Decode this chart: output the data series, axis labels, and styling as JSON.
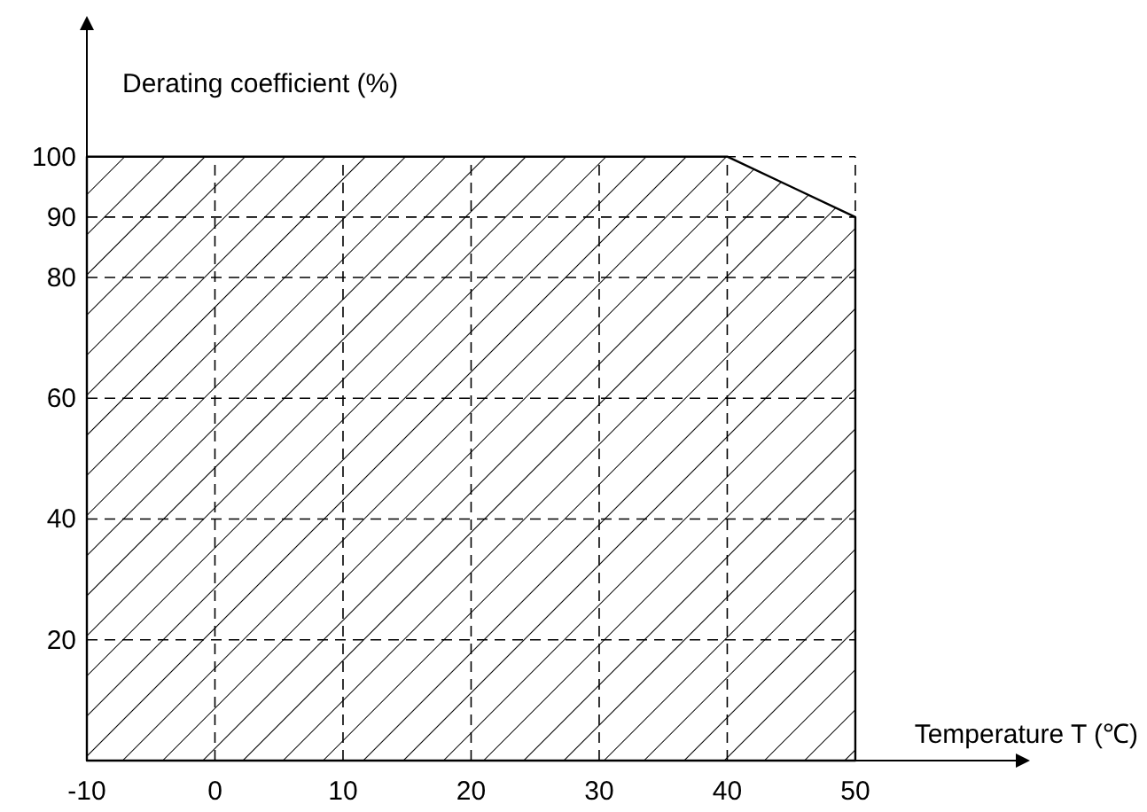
{
  "chart_data": {
    "type": "area",
    "xlabel": "Temperature T (℃)",
    "ylabel": "Derating coefficient (%)",
    "x": [
      -10,
      40,
      45,
      50
    ],
    "series": [
      {
        "color": "#000000",
        "values": [
          100,
          100,
          95,
          90
        ]
      }
    ],
    "xlim": [
      -10,
      63.5
    ],
    "ylim": [
      0,
      123
    ],
    "xticks": [
      -10,
      0,
      10,
      20,
      30,
      40,
      50
    ],
    "yticks": [
      20,
      40,
      60,
      80,
      90,
      100
    ],
    "grid": true,
    "line_style": "solid"
  }
}
